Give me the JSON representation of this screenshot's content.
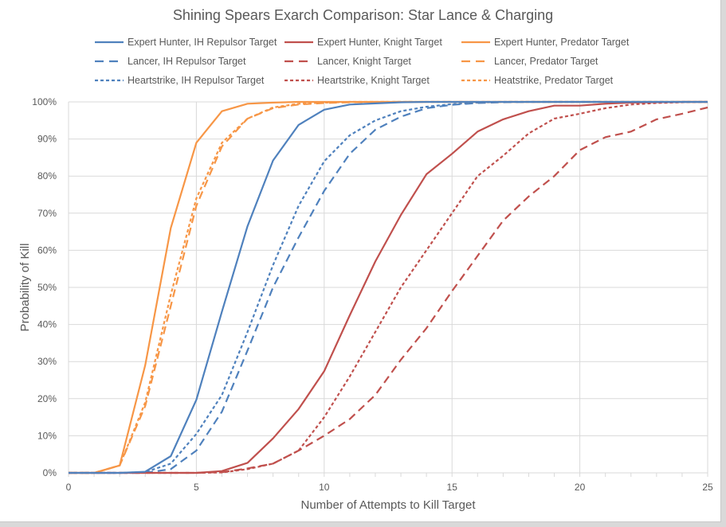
{
  "chart_data": {
    "type": "line",
    "title": "Shining Spears Exarch Comparison: Star Lance & Charging",
    "xlabel": "Number of Attempts to Kill Target",
    "ylabel": "Probability of Kill",
    "xlim": [
      0,
      25
    ],
    "ylim": [
      0,
      100
    ],
    "x_ticks": [
      "0",
      "5",
      "10",
      "15",
      "20",
      "25"
    ],
    "y_ticks": [
      "0%",
      "10%",
      "20%",
      "30%",
      "40%",
      "50%",
      "60%",
      "70%",
      "80%",
      "90%",
      "100%"
    ],
    "grid": true,
    "legend_position": "top",
    "x": [
      0,
      1,
      2,
      3,
      4,
      5,
      6,
      7,
      8,
      9,
      10,
      11,
      12,
      13,
      14,
      15,
      16,
      17,
      18,
      19,
      20,
      21,
      22,
      23,
      24,
      25
    ],
    "series": [
      {
        "name": "Expert Hunter, IH Repulsor Target",
        "color": "#4f81bd",
        "style": "solid",
        "values": [
          0,
          0,
          0,
          0.3,
          4.5,
          19.7,
          43.5,
          66.5,
          84.2,
          93.8,
          97.9,
          99.3,
          99.6,
          99.9,
          100,
          100,
          100,
          100,
          100,
          100,
          100,
          100,
          100,
          100,
          100,
          100
        ]
      },
      {
        "name": "Expert Hunter, Knight Target",
        "color": "#c0504d",
        "style": "solid",
        "values": [
          0,
          0,
          0,
          0,
          0,
          0,
          0.5,
          2.7,
          9.3,
          17.2,
          27.4,
          42.5,
          57,
          69.5,
          80.5,
          86,
          92,
          95.3,
          97.5,
          99,
          99,
          99.5,
          99.8,
          99.9,
          100,
          100
        ]
      },
      {
        "name": "Expert Hunter, Predator Target",
        "color": "#f79646",
        "style": "solid",
        "values": [
          0,
          0,
          2,
          29,
          66,
          89,
          97.5,
          99.5,
          99.8,
          100,
          100,
          100,
          100,
          100,
          100,
          100,
          100,
          100,
          100,
          100,
          100,
          100,
          100,
          100,
          100,
          100
        ]
      },
      {
        "name": "Lancer, IH Repulsor Target",
        "color": "#4f81bd",
        "style": "longdash",
        "values": [
          0,
          0,
          0,
          0,
          1,
          6,
          16.5,
          33,
          50,
          63.5,
          76,
          86,
          92.5,
          96,
          98.3,
          99.2,
          99.7,
          99.9,
          100,
          100,
          100,
          100,
          100,
          100,
          100,
          100
        ]
      },
      {
        "name": "Lancer, Knight Target",
        "color": "#c0504d",
        "style": "longdash",
        "values": [
          0,
          0,
          0,
          0,
          0,
          0,
          0.2,
          1.2,
          2.5,
          6,
          10,
          14.5,
          21,
          30.5,
          39,
          49,
          58.5,
          68,
          74.5,
          80,
          87,
          90.5,
          92,
          95.3,
          96.8,
          98.5
        ]
      },
      {
        "name": "Lancer, Predator Target",
        "color": "#f79646",
        "style": "longdash",
        "values": [
          0,
          0,
          2,
          18,
          45,
          72,
          88,
          95.5,
          98.3,
          99.3,
          99.7,
          99.9,
          100,
          100,
          100,
          100,
          100,
          100,
          100,
          100,
          100,
          100,
          100,
          100,
          100,
          100
        ]
      },
      {
        "name": "Heartstrike, IH Repulsor Target",
        "color": "#4f81bd",
        "style": "shortdash",
        "values": [
          0,
          0,
          0,
          0.2,
          2.5,
          10.5,
          21,
          38,
          56,
          72,
          84,
          91,
          95,
          97.5,
          98.7,
          99.4,
          99.8,
          100,
          100,
          100,
          100,
          100,
          100,
          100,
          100,
          100
        ]
      },
      {
        "name": "Heartstrike, Knight Target",
        "color": "#c0504d",
        "style": "shortdash",
        "values": [
          0,
          0,
          0,
          0,
          0,
          0,
          0.1,
          1,
          2.5,
          6,
          15,
          26,
          38,
          50,
          60,
          70,
          80,
          85.5,
          91.5,
          95.5,
          96.8,
          98.3,
          99.3,
          99.7,
          99.9,
          100
        ]
      },
      {
        "name": "Heatstrike, Predator Target",
        "color": "#f79646",
        "style": "shortdash",
        "values": [
          0,
          0,
          2,
          19,
          48,
          74,
          89,
          95.5,
          98.5,
          99.5,
          99.8,
          100,
          100,
          100,
          100,
          100,
          100,
          100,
          100,
          100,
          100,
          100,
          100,
          100,
          100,
          100
        ]
      }
    ]
  }
}
